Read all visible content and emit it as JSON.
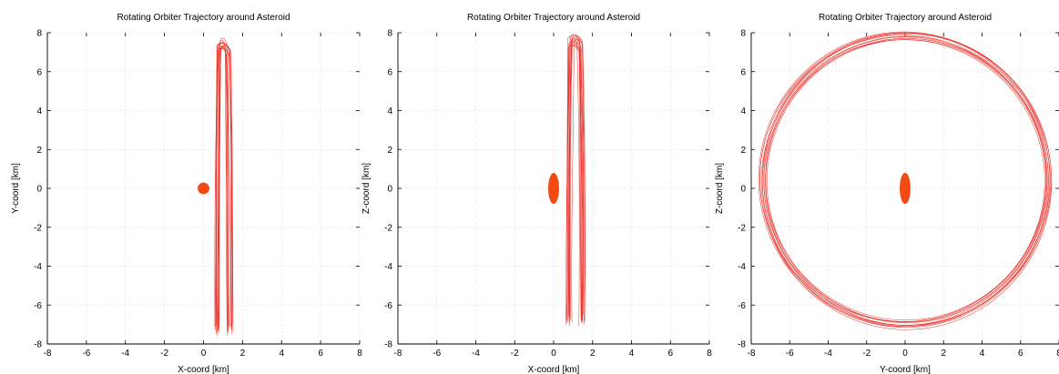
{
  "chart_data": [
    {
      "type": "line",
      "title": "Rotating Orbiter Trajectory around Asteroid",
      "xlabel": "X-coord [km]",
      "ylabel": "Y-coord [km]",
      "xlim": [
        -8,
        8
      ],
      "ylim": [
        -8,
        8
      ],
      "xticks": [
        "-8",
        "-6",
        "-4",
        "-2",
        "0",
        "2",
        "4",
        "6",
        "8"
      ],
      "yticks": [
        "-8",
        "-6",
        "-4",
        "-2",
        "0",
        "2",
        "4",
        "6",
        "8"
      ],
      "grid": true,
      "series_color": "#e8322a",
      "asteroid": {
        "center": [
          0,
          0
        ],
        "semi_axes": [
          0.3,
          0.3
        ],
        "color": "#f24a12"
      },
      "trajectory": {
        "shape": "narrow_band",
        "x_range": [
          0.55,
          1.55
        ],
        "y_range": [
          -7.6,
          7.6
        ]
      }
    },
    {
      "type": "line",
      "title": "Rotating Orbiter Trajectory around Asteroid",
      "xlabel": "X-coord [km]",
      "ylabel": "Z-coord [km]",
      "xlim": [
        -8,
        8
      ],
      "ylim": [
        -8,
        8
      ],
      "xticks": [
        "-8",
        "-6",
        "-4",
        "-2",
        "0",
        "2",
        "4",
        "6",
        "8"
      ],
      "yticks": [
        "-8",
        "-6",
        "-4",
        "-2",
        "0",
        "2",
        "4",
        "6",
        "8"
      ],
      "grid": true,
      "series_color": "#e8322a",
      "asteroid": {
        "center": [
          0,
          0
        ],
        "semi_axes": [
          0.28,
          0.8
        ],
        "color": "#f24a12"
      },
      "trajectory": {
        "shape": "narrow_band",
        "x_range": [
          0.6,
          1.6
        ],
        "y_range": [
          -7.1,
          7.8
        ]
      }
    },
    {
      "type": "line",
      "title": "Rotating Orbiter Trajectory around Asteroid",
      "xlabel": "Y-coord [km]",
      "ylabel": "Z-coord [km]",
      "xlim": [
        -8,
        8
      ],
      "ylim": [
        -8,
        8
      ],
      "xticks": [
        "-8",
        "-6",
        "-4",
        "-2",
        "0",
        "2",
        "4",
        "6",
        "8"
      ],
      "yticks": [
        "-8",
        "-6",
        "-4",
        "-2",
        "0",
        "2",
        "4",
        "6",
        "8"
      ],
      "grid": true,
      "series_color": "#e8322a",
      "asteroid": {
        "center": [
          0,
          0
        ],
        "semi_axes": [
          0.28,
          0.8
        ],
        "color": "#f24a12"
      },
      "trajectory": {
        "shape": "circle_loops",
        "center": [
          0,
          0.4
        ],
        "radius_range": [
          7.2,
          7.6
        ],
        "loops": 12
      }
    }
  ]
}
